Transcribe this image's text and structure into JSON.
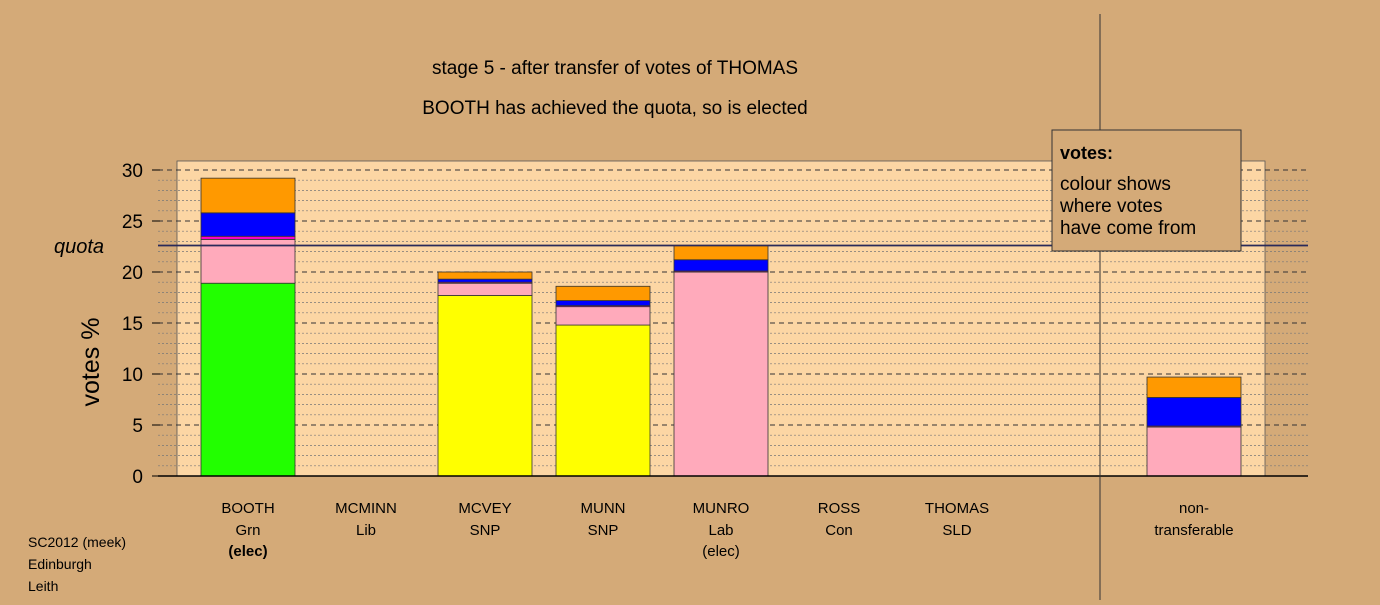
{
  "chart_data": {
    "type": "bar",
    "title": "stage 5 - after transfer of votes of THOMAS",
    "subtitle": "BOOTH has achieved the quota, so is elected",
    "ylabel": "votes %",
    "ylim": [
      0,
      30
    ],
    "yticks": [
      0,
      5,
      10,
      15,
      20,
      25,
      30
    ],
    "quota": 22.6,
    "quota_label": "quota",
    "categories": [
      {
        "name": "BOOTH",
        "party": "Grn",
        "status": "(elec)",
        "bold": true
      },
      {
        "name": "MCMINN",
        "party": "Lib",
        "status": ""
      },
      {
        "name": "MCVEY",
        "party": "SNP",
        "status": ""
      },
      {
        "name": "MUNN",
        "party": "SNP",
        "status": ""
      },
      {
        "name": "MUNRO",
        "party": "Lab",
        "status": "(elec)"
      },
      {
        "name": "ROSS",
        "party": "Con",
        "status": ""
      },
      {
        "name": "THOMAS",
        "party": "SLD",
        "status": ""
      },
      {
        "name": "non-",
        "party": "transferable",
        "status": ""
      }
    ],
    "series_colors": [
      "#22ff00",
      "#ffaabb",
      "#ff00cc",
      "#0000ff",
      "#ff9900",
      "#ffff00"
    ],
    "stacks": [
      [
        {
          "c": 0,
          "v": 18.9
        },
        {
          "c": 1,
          "v": 4.3
        },
        {
          "c": 2,
          "v": 0.3
        },
        {
          "c": 3,
          "v": 2.3
        },
        {
          "c": 4,
          "v": 3.4
        }
      ],
      [],
      [
        {
          "c": 5,
          "v": 17.7
        },
        {
          "c": 1,
          "v": 1.2
        },
        {
          "c": 2,
          "v": 0.1
        },
        {
          "c": 3,
          "v": 0.3
        },
        {
          "c": 4,
          "v": 0.7
        }
      ],
      [
        {
          "c": 5,
          "v": 14.8
        },
        {
          "c": 1,
          "v": 1.8
        },
        {
          "c": 2,
          "v": 0.1
        },
        {
          "c": 3,
          "v": 0.5
        },
        {
          "c": 4,
          "v": 1.4
        }
      ],
      [
        {
          "c": 1,
          "v": 20.0
        },
        {
          "c": 2,
          "v": 0.1
        },
        {
          "c": 3,
          "v": 1.1
        },
        {
          "c": 4,
          "v": 1.4
        }
      ],
      [],
      [],
      [
        {
          "c": 1,
          "v": 4.8
        },
        {
          "c": 2,
          "v": 0.1
        },
        {
          "c": 3,
          "v": 2.8
        },
        {
          "c": 4,
          "v": 2.0
        }
      ]
    ],
    "legend": {
      "title": "votes:",
      "lines": [
        "colour shows",
        "where votes",
        "have come from"
      ]
    }
  },
  "footer": {
    "line1": "SC2012 (meek)",
    "line2": "Edinburgh",
    "line3": "Leith"
  }
}
